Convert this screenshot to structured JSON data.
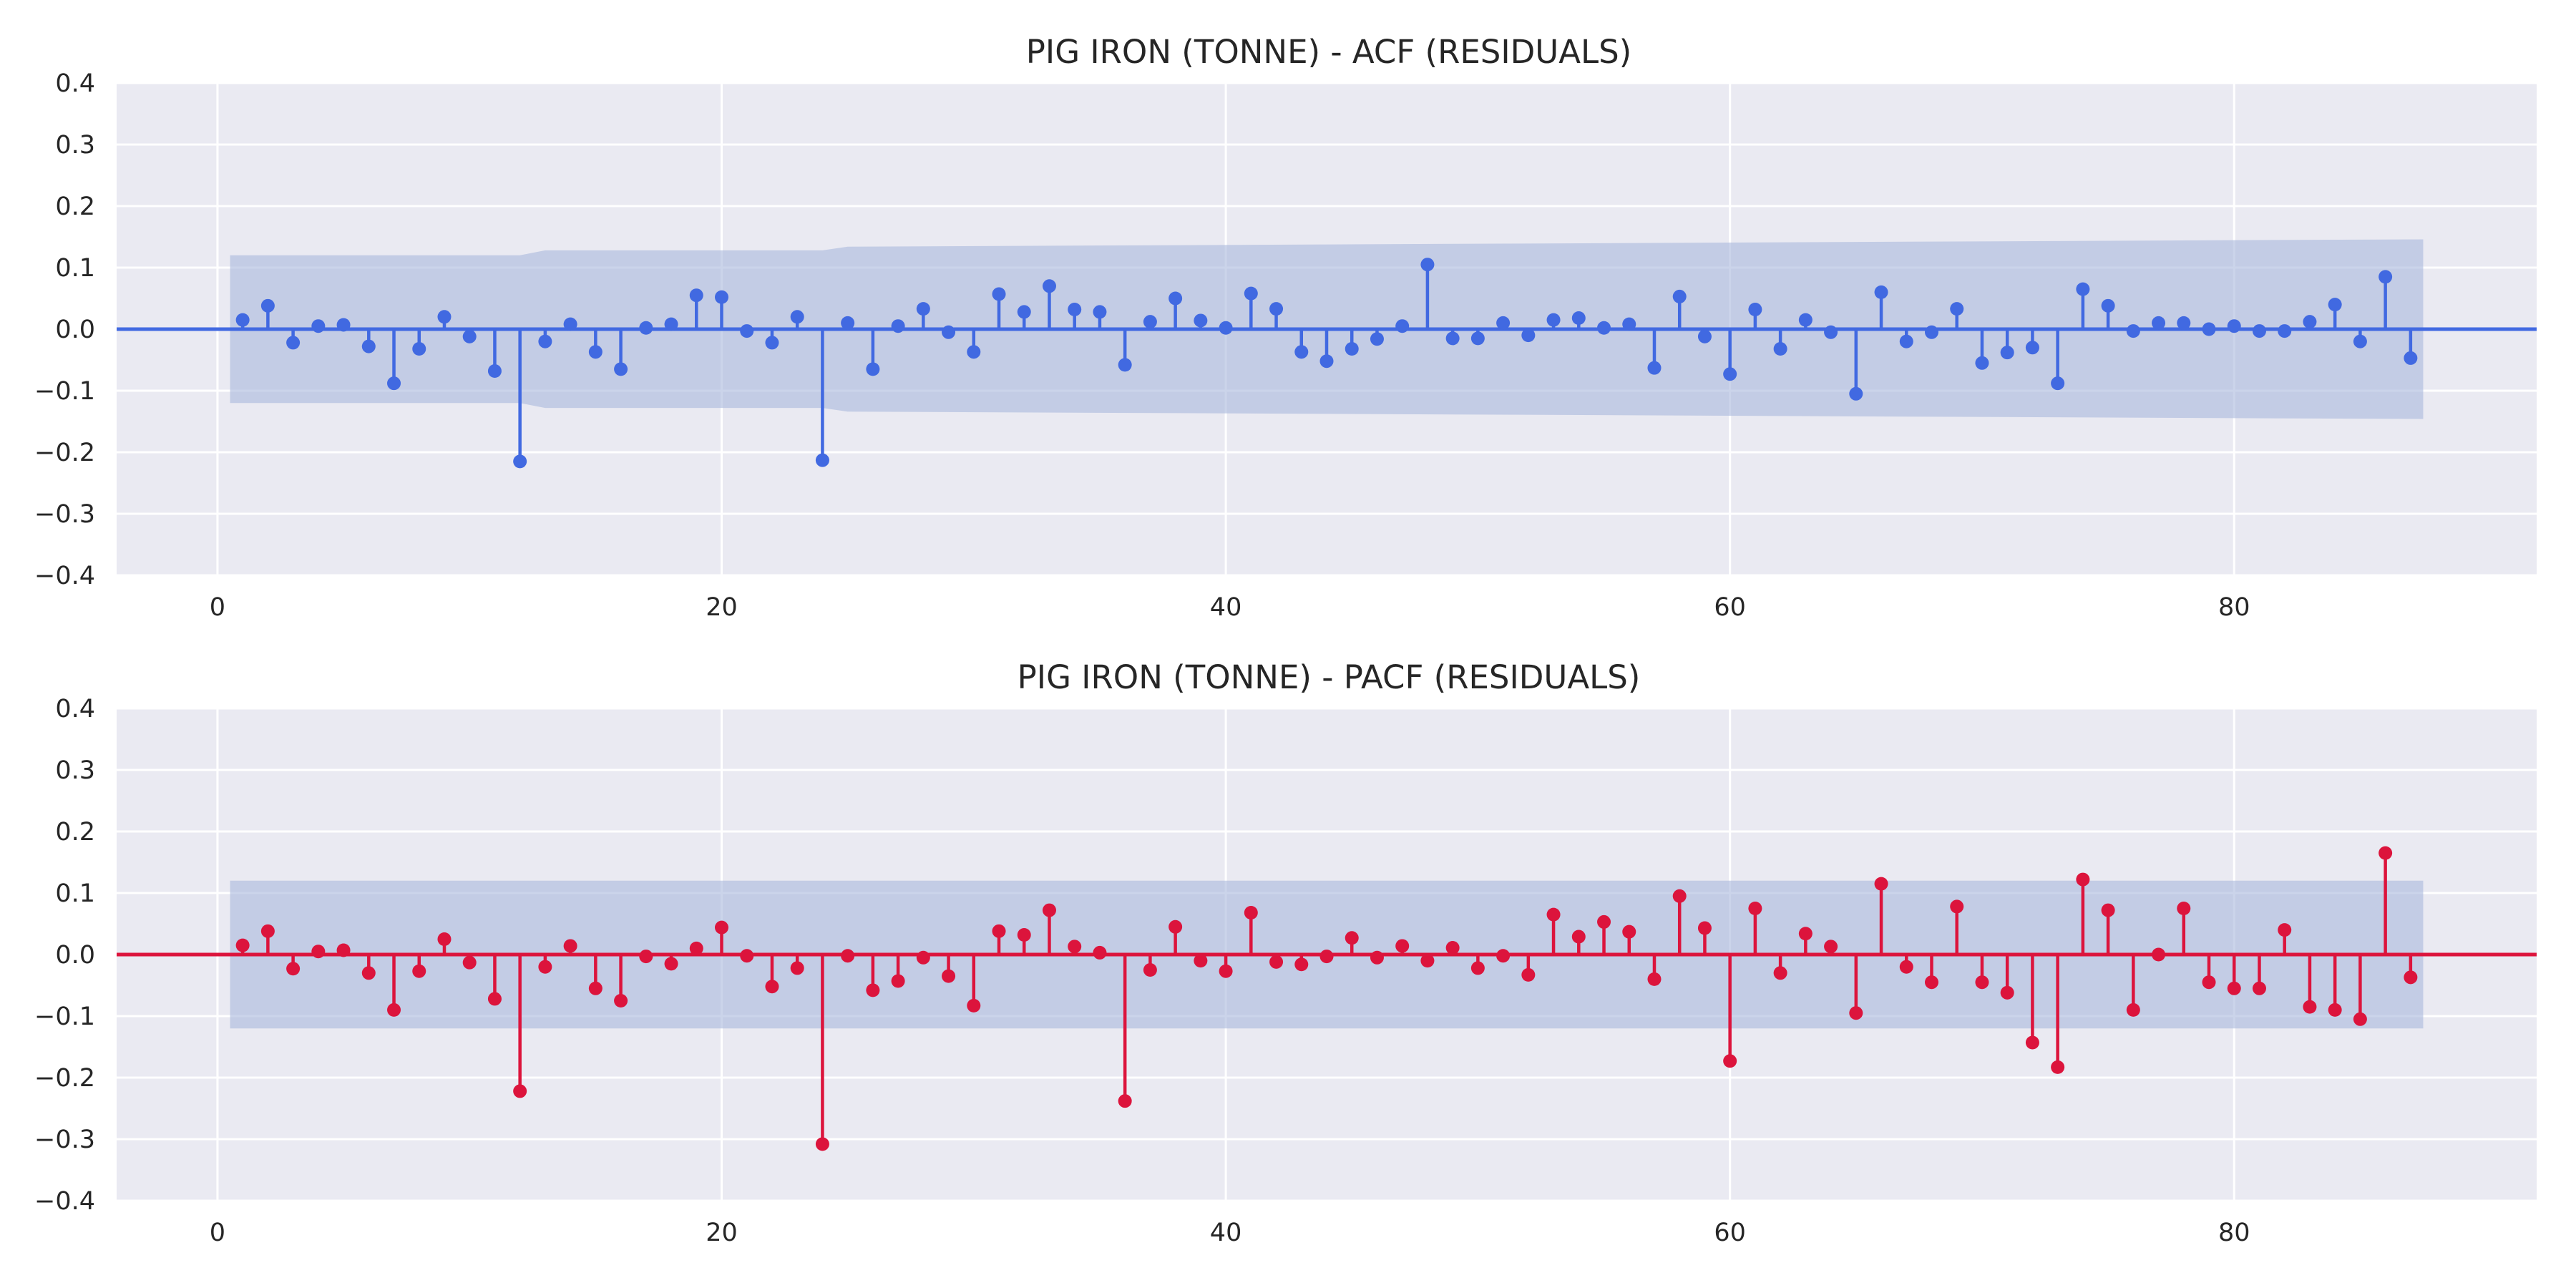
{
  "chart_data": [
    {
      "type": "stem",
      "title": "PIG IRON (TONNE) - ACF (RESIDUALS)",
      "xlabel": "",
      "ylabel": "",
      "xlim": [
        -4,
        92
      ],
      "ylim": [
        -0.4,
        0.4
      ],
      "x_ticks": [
        0,
        20,
        40,
        60,
        80
      ],
      "x_tick_labels": [
        "0",
        "20",
        "40",
        "60",
        "80"
      ],
      "y_ticks": [
        -0.4,
        -0.3,
        -0.2,
        -0.1,
        0.0,
        0.1,
        0.2,
        0.3,
        0.4
      ],
      "y_tick_labels": [
        "−0.4",
        "−0.3",
        "−0.2",
        "−0.1",
        "0.0",
        "0.1",
        "0.2",
        "0.3",
        "0.4"
      ],
      "grid": true,
      "color": "#4169E1",
      "confidence_band": {
        "color": "#A9B7DC",
        "lags": [
          0.5,
          12,
          13,
          24,
          25,
          87.5
        ],
        "upper": [
          0.12,
          0.12,
          0.128,
          0.128,
          0.134,
          0.146
        ]
      },
      "lags": [
        1,
        2,
        3,
        4,
        5,
        6,
        7,
        8,
        9,
        10,
        11,
        12,
        13,
        14,
        15,
        16,
        17,
        18,
        19,
        20,
        21,
        22,
        23,
        24,
        25,
        26,
        27,
        28,
        29,
        30,
        31,
        32,
        33,
        34,
        35,
        36,
        37,
        38,
        39,
        40,
        41,
        42,
        43,
        44,
        45,
        46,
        47,
        48,
        49,
        50,
        51,
        52,
        53,
        54,
        55,
        56,
        57,
        58,
        59,
        60,
        61,
        62,
        63,
        64,
        65,
        66,
        67,
        68,
        69,
        70,
        71,
        72,
        73,
        74,
        75,
        76,
        77,
        78,
        79,
        80,
        81,
        82,
        83,
        84,
        85,
        86,
        87
      ],
      "values": [
        0.015,
        0.038,
        -0.022,
        0.005,
        0.007,
        -0.028,
        -0.088,
        -0.032,
        0.02,
        -0.012,
        -0.068,
        -0.215,
        -0.02,
        0.008,
        -0.037,
        -0.065,
        0.002,
        0.008,
        0.055,
        0.052,
        -0.003,
        -0.022,
        0.02,
        -0.213,
        0.01,
        -0.065,
        0.005,
        0.033,
        -0.005,
        -0.037,
        0.057,
        0.028,
        0.07,
        0.032,
        0.028,
        -0.058,
        0.012,
        0.05,
        0.014,
        0.002,
        0.058,
        0.033,
        -0.037,
        -0.052,
        -0.032,
        -0.016,
        0.005,
        0.105,
        -0.015,
        -0.015,
        0.01,
        -0.01,
        0.015,
        0.018,
        0.002,
        0.008,
        -0.063,
        0.053,
        -0.012,
        -0.073,
        0.032,
        -0.032,
        0.015,
        -0.005,
        -0.105,
        0.06,
        -0.02,
        -0.005,
        0.033,
        -0.055,
        -0.038,
        -0.03,
        -0.088,
        0.065,
        0.038,
        -0.003,
        0.01,
        0.01,
        0.0,
        0.005,
        -0.003,
        -0.003,
        0.012,
        0.04,
        -0.02,
        0.085,
        -0.047
      ]
    },
    {
      "type": "stem",
      "title": "PIG IRON (TONNE) - PACF (RESIDUALS)",
      "xlabel": "",
      "ylabel": "",
      "xlim": [
        -4,
        92
      ],
      "ylim": [
        -0.4,
        0.4
      ],
      "x_ticks": [
        0,
        20,
        40,
        60,
        80
      ],
      "x_tick_labels": [
        "0",
        "20",
        "40",
        "60",
        "80"
      ],
      "y_ticks": [
        -0.4,
        -0.3,
        -0.2,
        -0.1,
        0.0,
        0.1,
        0.2,
        0.3,
        0.4
      ],
      "y_tick_labels": [
        "−0.4",
        "−0.3",
        "−0.2",
        "−0.1",
        "0.0",
        "0.1",
        "0.2",
        "0.3",
        "0.4"
      ],
      "grid": true,
      "color": "#DC143C",
      "confidence_band": {
        "color": "#A9B7DC",
        "lags": [
          0.5,
          87.5
        ],
        "upper": [
          0.12,
          0.12
        ]
      },
      "lags": [
        1,
        2,
        3,
        4,
        5,
        6,
        7,
        8,
        9,
        10,
        11,
        12,
        13,
        14,
        15,
        16,
        17,
        18,
        19,
        20,
        21,
        22,
        23,
        24,
        25,
        26,
        27,
        28,
        29,
        30,
        31,
        32,
        33,
        34,
        35,
        36,
        37,
        38,
        39,
        40,
        41,
        42,
        43,
        44,
        45,
        46,
        47,
        48,
        49,
        50,
        51,
        52,
        53,
        54,
        55,
        56,
        57,
        58,
        59,
        60,
        61,
        62,
        63,
        64,
        65,
        66,
        67,
        68,
        69,
        70,
        71,
        72,
        73,
        74,
        75,
        76,
        77,
        78,
        79,
        80,
        81,
        82,
        83,
        84,
        85,
        86,
        87
      ],
      "values": [
        0.015,
        0.038,
        -0.023,
        0.005,
        0.007,
        -0.03,
        -0.09,
        -0.027,
        0.025,
        -0.013,
        -0.072,
        -0.222,
        -0.02,
        0.014,
        -0.055,
        -0.075,
        -0.003,
        -0.015,
        0.01,
        0.044,
        -0.002,
        -0.052,
        -0.022,
        -0.308,
        -0.002,
        -0.058,
        -0.043,
        -0.005,
        -0.035,
        -0.083,
        0.038,
        0.032,
        0.072,
        0.013,
        0.003,
        -0.238,
        -0.025,
        0.045,
        -0.01,
        -0.027,
        0.068,
        -0.012,
        -0.016,
        -0.003,
        0.027,
        -0.005,
        0.014,
        -0.01,
        0.011,
        -0.022,
        -0.002,
        -0.033,
        0.065,
        0.029,
        0.053,
        0.037,
        -0.04,
        0.095,
        0.043,
        -0.173,
        0.075,
        -0.03,
        0.034,
        0.013,
        -0.095,
        0.115,
        -0.02,
        -0.045,
        0.078,
        -0.045,
        -0.062,
        -0.143,
        -0.183,
        0.122,
        0.072,
        -0.09,
        0.0,
        0.075,
        -0.045,
        -0.055,
        -0.055,
        0.04,
        -0.085,
        -0.09,
        -0.105,
        0.165,
        -0.037
      ]
    }
  ]
}
